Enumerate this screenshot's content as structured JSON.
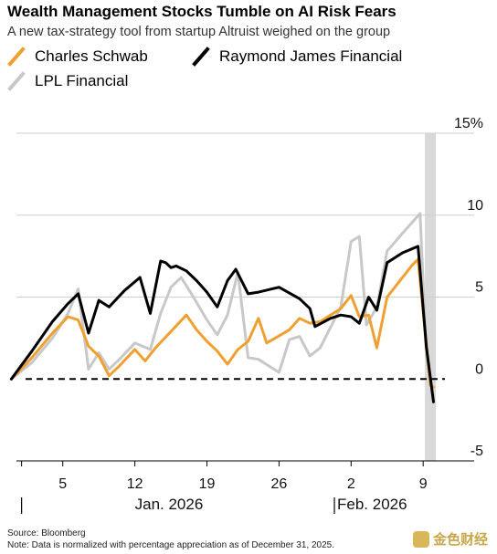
{
  "chart_data": {
    "type": "line",
    "title": "Wealth Management Stocks Tumble on AI Risk Fears",
    "subtitle": "A new tax-strategy tool from startup Altruist weighed on the group",
    "ylim": [
      -5,
      15
    ],
    "yticks": [
      15,
      10,
      5,
      0,
      -5
    ],
    "ytick_labels": [
      "15%",
      "10",
      "5",
      "0",
      "-5"
    ],
    "x_range": [
      -0.5,
      42
    ],
    "xticks": [
      4,
      11,
      18,
      25,
      32,
      39
    ],
    "xtick_labels": [
      "5",
      "12",
      "19",
      "26",
      "2",
      "9"
    ],
    "month_labels": [
      {
        "x": 0,
        "label": "Jan. 2026"
      },
      {
        "x": 31,
        "label": "Feb. 2026"
      }
    ],
    "highlight_x": 39.7,
    "legend_position": "top-left",
    "series": [
      {
        "name": "Charles Schwab",
        "color": "#f0a030",
        "points": [
          [
            -1,
            0
          ],
          [
            1,
            1.3
          ],
          [
            3,
            2.8
          ],
          [
            4.5,
            3.8
          ],
          [
            5.5,
            3.6
          ],
          [
            6.5,
            2
          ],
          [
            7.5,
            1.4
          ],
          [
            8.5,
            0.2
          ],
          [
            9.5,
            0.8
          ],
          [
            11,
            1.8
          ],
          [
            12,
            1.1
          ],
          [
            13,
            1.9
          ],
          [
            14.5,
            2.9
          ],
          [
            16,
            3.9
          ],
          [
            17,
            3
          ],
          [
            18,
            2.3
          ],
          [
            19,
            1.7
          ],
          [
            20,
            0.9
          ],
          [
            21,
            1.8
          ],
          [
            22,
            2.3
          ],
          [
            23,
            3.7
          ],
          [
            23.8,
            2.2
          ],
          [
            26,
            3
          ],
          [
            27,
            3.7
          ],
          [
            28,
            3.4
          ],
          [
            29,
            3.5
          ],
          [
            31,
            4.3
          ],
          [
            32,
            5.1
          ],
          [
            32.8,
            3.8
          ],
          [
            33.7,
            3.9
          ],
          [
            34.5,
            1.9
          ],
          [
            35.5,
            5
          ],
          [
            38,
            7
          ],
          [
            38.5,
            7.3
          ],
          [
            39.7,
            -0.4
          ],
          [
            40,
            -0.5
          ]
        ]
      },
      {
        "name": "Raymond James Financial",
        "color": "#000000",
        "points": [
          [
            -1,
            0
          ],
          [
            1,
            1.7
          ],
          [
            3,
            3.5
          ],
          [
            4.5,
            4.6
          ],
          [
            5.5,
            5.2
          ],
          [
            6.5,
            2.8
          ],
          [
            7.5,
            4.8
          ],
          [
            8.5,
            4.4
          ],
          [
            10,
            5.4
          ],
          [
            11.5,
            6.2
          ],
          [
            12.5,
            4
          ],
          [
            13.5,
            7.2
          ],
          [
            14,
            7.1
          ],
          [
            14.5,
            6.8
          ],
          [
            15,
            6.9
          ],
          [
            16,
            6.6
          ],
          [
            17,
            6
          ],
          [
            18,
            5.3
          ],
          [
            19,
            4.4
          ],
          [
            20,
            6
          ],
          [
            20.8,
            6.7
          ],
          [
            22,
            5.2
          ],
          [
            23,
            5.3
          ],
          [
            25,
            5.6
          ],
          [
            27,
            4.9
          ],
          [
            28,
            4.3
          ],
          [
            28.5,
            3.2
          ],
          [
            30,
            3.7
          ],
          [
            31,
            3.9
          ],
          [
            32,
            3.8
          ],
          [
            32.8,
            3.4
          ],
          [
            33.7,
            5
          ],
          [
            34.5,
            4.2
          ],
          [
            35.5,
            7.1
          ],
          [
            37,
            7.7
          ],
          [
            38.5,
            8.1
          ],
          [
            39.3,
            2
          ],
          [
            40,
            -1.4
          ]
        ]
      },
      {
        "name": "LPL Financial",
        "color": "#c8c8c8",
        "points": [
          [
            -1,
            0
          ],
          [
            1,
            1
          ],
          [
            3,
            2.5
          ],
          [
            4.5,
            4
          ],
          [
            5.5,
            5.5
          ],
          [
            6.5,
            0.6
          ],
          [
            7.5,
            1.6
          ],
          [
            8.5,
            0.6
          ],
          [
            9.5,
            1.2
          ],
          [
            11,
            2.2
          ],
          [
            12.5,
            1.8
          ],
          [
            13.5,
            4
          ],
          [
            14.5,
            5.6
          ],
          [
            15.5,
            6.2
          ],
          [
            16.5,
            5.2
          ],
          [
            18,
            3.6
          ],
          [
            19,
            2.7
          ],
          [
            20,
            3.9
          ],
          [
            21,
            6.5
          ],
          [
            22,
            1.3
          ],
          [
            23,
            1.2
          ],
          [
            25,
            0.4
          ],
          [
            26,
            2.4
          ],
          [
            27,
            2.6
          ],
          [
            28,
            1.4
          ],
          [
            29,
            1.9
          ],
          [
            31,
            4.4
          ],
          [
            32,
            8.4
          ],
          [
            32.8,
            8.7
          ],
          [
            33.5,
            3.3
          ],
          [
            34.5,
            4.4
          ],
          [
            35.5,
            7.8
          ],
          [
            37,
            8.9
          ],
          [
            38.7,
            10.1
          ],
          [
            39.3,
            1.5
          ],
          [
            40,
            -1
          ]
        ]
      }
    ]
  },
  "footer": {
    "source": "Source: Bloomberg",
    "note": "Note: Data is normalized with percentage appreciation as of December 31, 2025."
  },
  "watermark": {
    "text": "金色财经",
    "icon": "watermark-logo-icon"
  }
}
